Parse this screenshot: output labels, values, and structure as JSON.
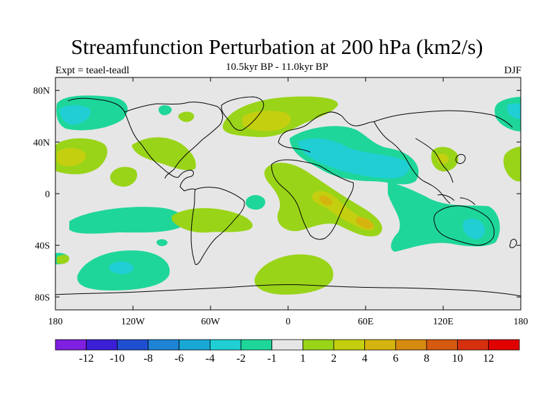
{
  "header": {
    "title": "Streamfunction Perturbation at 200 hPa (km2/s)",
    "subtitle": "10.5kyr BP - 11.0kyr BP",
    "left_label": "Expt = teael-teadl",
    "right_label": "DJF"
  },
  "map": {
    "ocean_color": "#e6e6e6",
    "coastline_color": "#000000",
    "lon_range": [
      -180,
      180
    ],
    "lat_range": [
      -90,
      90
    ]
  },
  "axes": {
    "x_ticks": [
      {
        "value": -180,
        "label": "180"
      },
      {
        "value": -120,
        "label": "120W"
      },
      {
        "value": -60,
        "label": "60W"
      },
      {
        "value": 0,
        "label": "0"
      },
      {
        "value": 60,
        "label": "60E"
      },
      {
        "value": 120,
        "label": "120E"
      },
      {
        "value": 180,
        "label": "180"
      }
    ],
    "y_ticks": [
      {
        "value": 80,
        "label": "80N"
      },
      {
        "value": 40,
        "label": "40N"
      },
      {
        "value": 0,
        "label": "0"
      },
      {
        "value": -40,
        "label": "40S"
      },
      {
        "value": -80,
        "label": "80S"
      }
    ]
  },
  "colorbar": {
    "colors": [
      "#7f1fdf",
      "#3a1fd6",
      "#1f4fd1",
      "#1f84d6",
      "#19a8d6",
      "#1fcfd4",
      "#1fd69a",
      "#e6e6e6",
      "#99d419",
      "#c3cf0f",
      "#d6b40f",
      "#d68a0f",
      "#d65a0f",
      "#d6300f",
      "#e00000"
    ],
    "labels": [
      "-12",
      "-10",
      "-8",
      "-6",
      "-4",
      "-2",
      "-1",
      "1",
      "2",
      "4",
      "6",
      "8",
      "10",
      "12"
    ]
  },
  "chart_data": {
    "type": "heatmap",
    "title": "Streamfunction Perturbation at 200 hPa (km2/s)",
    "subtitle": "10.5kyr BP - 11.0kyr BP",
    "xlim": [
      -180,
      180
    ],
    "ylim": [
      -90,
      90
    ],
    "levels": [
      -12,
      -10,
      -8,
      -6,
      -4,
      -2,
      -1,
      1,
      2,
      4,
      6,
      8,
      10,
      12
    ],
    "features": [
      {
        "sign": "negative",
        "lon": -160,
        "lat": 62,
        "peak": -2
      },
      {
        "sign": "negative",
        "lon": 175,
        "lat": 65,
        "peak": -2
      },
      {
        "sign": "negative",
        "lon": 50,
        "lat": 30,
        "peak": -2
      },
      {
        "sign": "negative",
        "lon": 75,
        "lat": 20,
        "peak": -2
      },
      {
        "sign": "negative",
        "lon": 85,
        "lat": -10,
        "peak": -1
      },
      {
        "sign": "negative",
        "lon": 145,
        "lat": -28,
        "peak": -2
      },
      {
        "sign": "negative",
        "lon": -135,
        "lat": -55,
        "peak": -2
      },
      {
        "sign": "negative",
        "lon": -140,
        "lat": -25,
        "peak": -1
      },
      {
        "sign": "positive",
        "lon": -5,
        "lat": 60,
        "peak": 2
      },
      {
        "sign": "positive",
        "lon": -165,
        "lat": 30,
        "peak": 2
      },
      {
        "sign": "positive",
        "lon": 178,
        "lat": 25,
        "peak": 1
      },
      {
        "sign": "positive",
        "lon": 40,
        "lat": -10,
        "peak": 2
      },
      {
        "sign": "positive",
        "lon": 10,
        "lat": -70,
        "peak": 1
      },
      {
        "sign": "positive",
        "lon": -85,
        "lat": 35,
        "peak": 1
      },
      {
        "sign": "positive",
        "lon": 125,
        "lat": 30,
        "peak": 1
      }
    ]
  }
}
